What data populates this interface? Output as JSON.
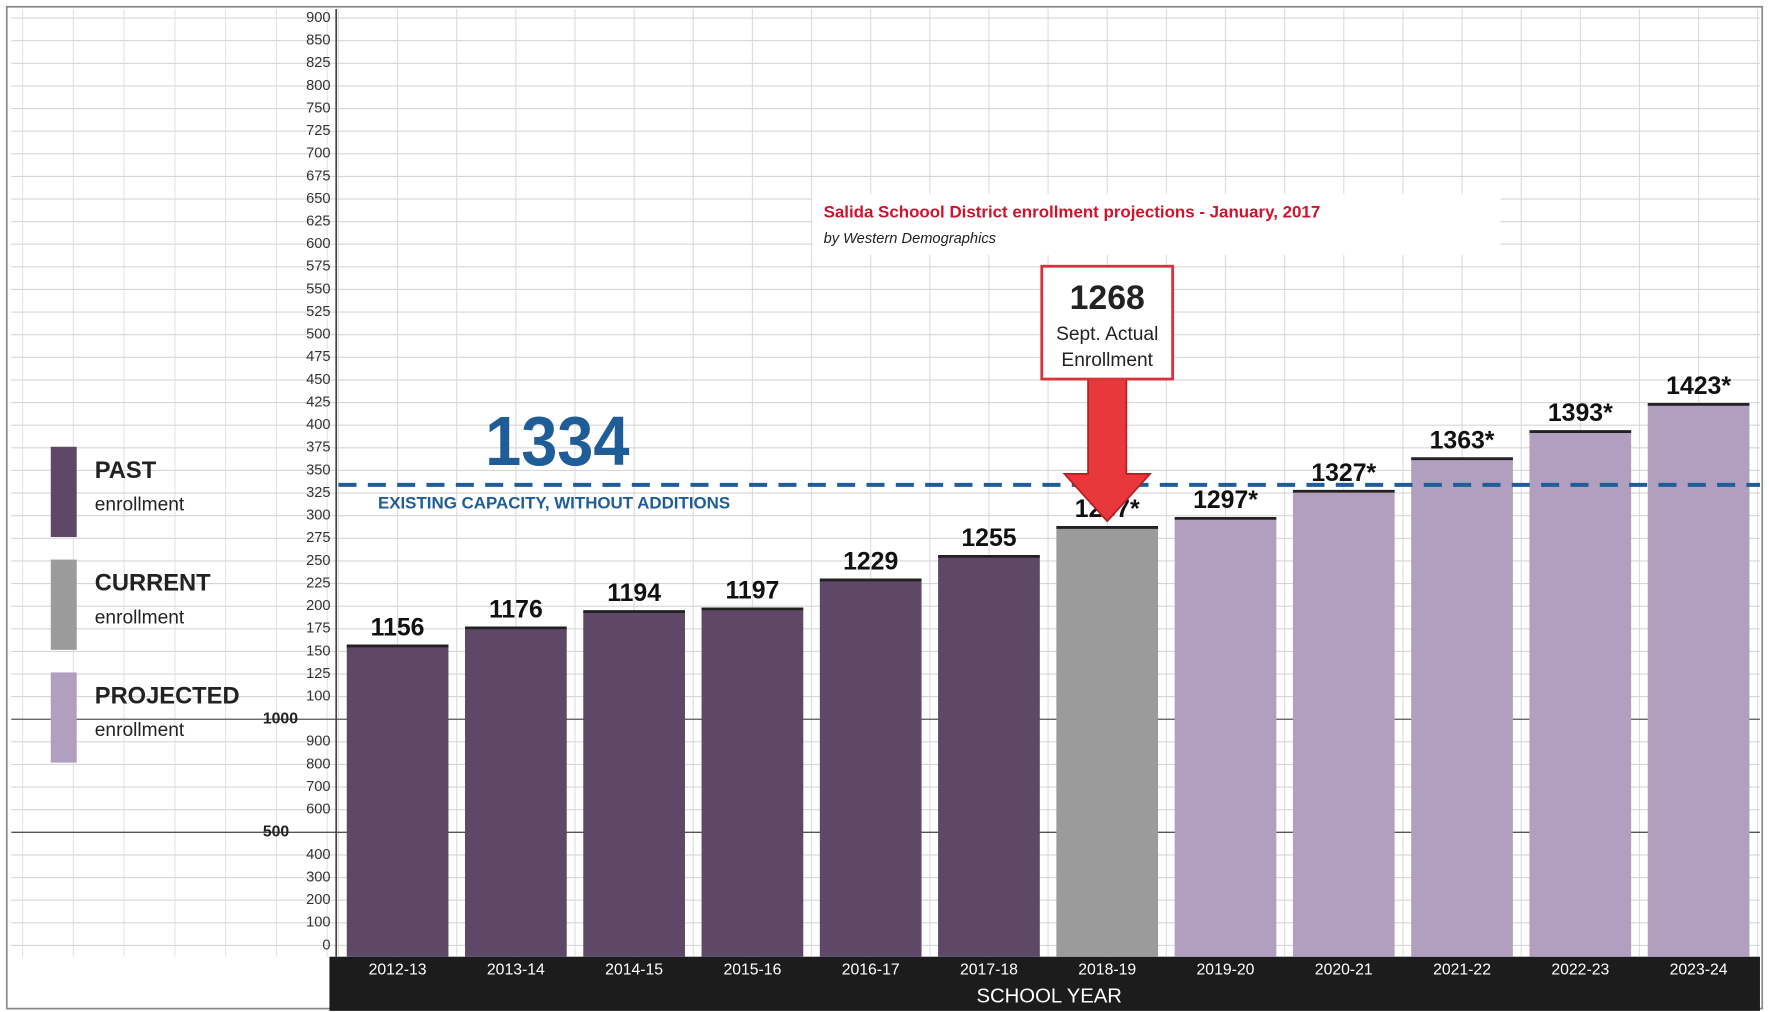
{
  "chart_data": {
    "type": "bar",
    "title": "Salida Schoool District enrollment projections - January, 2017",
    "subtitle": "by Western Demographics",
    "x_label": "SCHOOL YEAR",
    "categories": [
      "2012-13",
      "2013-14",
      "2014-15",
      "2015-16",
      "2016-17",
      "2017-18",
      "2018-19",
      "2019-20",
      "2020-21",
      "2021-22",
      "2022-23",
      "2023-24"
    ],
    "values": [
      1156,
      1176,
      1194,
      1197,
      1229,
      1255,
      1287,
      1297,
      1327,
      1363,
      1393,
      1423
    ],
    "value_labels": [
      "1156",
      "1176",
      "1194",
      "1197",
      "1229",
      "1255",
      "1287*",
      "1297*",
      "1327*",
      "1363*",
      "1393*",
      "1423*"
    ],
    "colors": [
      "#5e4767",
      "#5e4767",
      "#5e4767",
      "#5e4767",
      "#5e4767",
      "#5e4767",
      "#9b9b9b",
      "#b19fbf",
      "#b19fbf",
      "#b19fbf",
      "#b19fbf",
      "#b19fbf"
    ],
    "legend": [
      {
        "title": "PAST",
        "subtitle": "enrollment",
        "color": "#5e4767"
      },
      {
        "title": "CURRENT",
        "subtitle": "enrollment",
        "color": "#9b9b9b"
      },
      {
        "title": "PROJECTED",
        "subtitle": "enrollment",
        "color": "#b19fbf"
      }
    ],
    "ylim": [
      0,
      1900
    ],
    "yticks": [
      0,
      100,
      200,
      300,
      400,
      500,
      600,
      700,
      800,
      900,
      1000,
      {
        "value": 1100,
        "label": "100"
      },
      {
        "value": 1125,
        "label": "125"
      },
      {
        "value": 1150,
        "label": "150"
      },
      {
        "value": 1175,
        "label": "175"
      },
      {
        "value": 1200,
        "label": "200"
      },
      {
        "value": 1225,
        "label": "225"
      },
      {
        "value": 1250,
        "label": "250"
      },
      {
        "value": 1275,
        "label": "275"
      },
      {
        "value": 1300,
        "label": "300"
      },
      {
        "value": 1325,
        "label": "325"
      },
      {
        "value": 1350,
        "label": "350"
      },
      {
        "value": 1375,
        "label": "375"
      },
      {
        "value": 1400,
        "label": "400"
      },
      {
        "value": 1425,
        "label": "425"
      },
      {
        "value": 1450,
        "label": "450"
      },
      {
        "value": 1475,
        "label": "475"
      },
      {
        "value": 1500,
        "label": "500"
      },
      {
        "value": 1525,
        "label": "525"
      },
      {
        "value": 1550,
        "label": "550"
      },
      {
        "value": 1575,
        "label": "575"
      },
      {
        "value": 1600,
        "label": "600"
      },
      {
        "value": 1625,
        "label": "625"
      },
      {
        "value": 1650,
        "label": "650"
      },
      {
        "value": 1675,
        "label": "675"
      },
      {
        "value": 1700,
        "label": "700"
      },
      {
        "value": 1725,
        "label": "725"
      },
      {
        "value": 1750,
        "label": "750"
      },
      {
        "value": 1800,
        "label": "800"
      },
      {
        "value": 1825,
        "label": "825"
      },
      {
        "value": 1850,
        "label": "850"
      },
      {
        "value": 1900,
        "label": "900"
      }
    ],
    "grid": true,
    "capacity": {
      "value": 1334,
      "label": "1334",
      "text": "EXISTING CAPACITY, WITHOUT ADDITIONS",
      "color": "#1f5d99"
    },
    "callout": {
      "value": 1268,
      "label": "1268",
      "lines": [
        "Sept. Actual",
        "Enrollment"
      ],
      "category": "2018-19"
    }
  }
}
